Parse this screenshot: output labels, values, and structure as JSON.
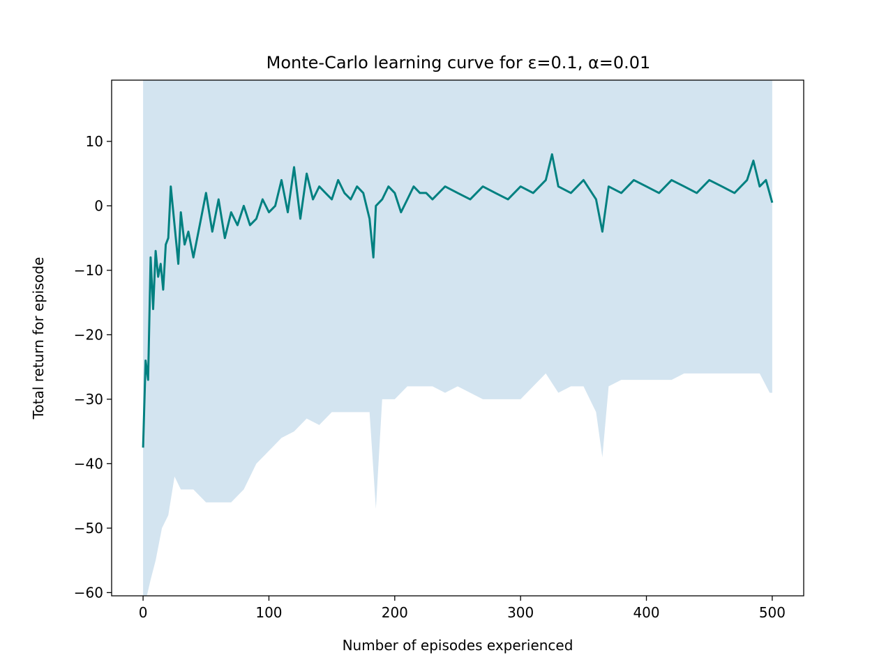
{
  "chart_data": {
    "type": "line",
    "title": "Monte-Carlo learning curve for ε=0.1, α=0.01",
    "xlabel": "Number of episodes experienced",
    "ylabel": "Total return for episode",
    "xlim": [
      -25,
      525
    ],
    "ylim": [
      -60.5,
      19.5
    ],
    "xticks": [
      0,
      100,
      200,
      300,
      400,
      500
    ],
    "yticks": [
      -60,
      -50,
      -40,
      -30,
      -20,
      -10,
      0,
      10
    ],
    "ytick_labels": [
      "−60",
      "−50",
      "−40",
      "−30",
      "−20",
      "−10",
      "0",
      "10"
    ],
    "grid": false,
    "legend": "none",
    "line_color": "#008080",
    "band_color": "#d3e4f0",
    "series": [
      {
        "type": "line",
        "x": [
          0,
          2,
          4,
          6,
          8,
          10,
          12,
          14,
          16,
          18,
          20,
          22,
          25,
          28,
          30,
          33,
          36,
          40,
          45,
          50,
          55,
          60,
          65,
          70,
          75,
          80,
          85,
          90,
          95,
          100,
          105,
          110,
          115,
          120,
          125,
          130,
          135,
          140,
          145,
          150,
          155,
          160,
          165,
          170,
          175,
          180,
          183,
          185,
          190,
          195,
          200,
          205,
          210,
          215,
          220,
          225,
          230,
          240,
          250,
          260,
          270,
          280,
          290,
          300,
          310,
          320,
          325,
          330,
          340,
          350,
          360,
          365,
          370,
          380,
          390,
          400,
          410,
          420,
          430,
          440,
          450,
          460,
          470,
          480,
          485,
          490,
          495,
          500
        ],
        "y": [
          -37.5,
          -24,
          -27,
          -8,
          -16,
          -7,
          -11,
          -9,
          -13,
          -6,
          -5,
          3,
          -3,
          -9,
          -1,
          -6,
          -4,
          -8,
          -3,
          2,
          -4,
          1,
          -5,
          -1,
          -3,
          0,
          -3,
          -2,
          1,
          -1,
          0,
          4,
          -1,
          6,
          -2,
          5,
          1,
          3,
          2,
          1,
          4,
          2,
          1,
          3,
          2,
          -2,
          -8,
          0,
          1,
          3,
          2,
          -1,
          1,
          3,
          2,
          2,
          1,
          3,
          2,
          1,
          3,
          2,
          1,
          3,
          2,
          4,
          8,
          3,
          2,
          4,
          1,
          -4,
          3,
          2,
          4,
          3,
          2,
          4,
          3,
          2,
          4,
          3,
          2,
          4,
          7,
          3,
          4,
          0.5
        ]
      }
    ],
    "band": {
      "x": [
        0,
        3,
        6,
        10,
        15,
        20,
        25,
        30,
        40,
        50,
        60,
        70,
        80,
        90,
        100,
        110,
        120,
        130,
        140,
        150,
        160,
        170,
        180,
        185,
        190,
        200,
        210,
        220,
        230,
        240,
        250,
        260,
        270,
        280,
        290,
        300,
        310,
        320,
        330,
        340,
        350,
        360,
        365,
        370,
        380,
        390,
        400,
        410,
        420,
        430,
        440,
        450,
        460,
        470,
        480,
        490,
        498,
        500
      ],
      "upper": [
        19.5,
        19.5,
        19.5,
        19.5,
        19.5,
        19.5,
        19.5,
        19.5,
        19.5,
        19.5,
        19.5,
        19.5,
        19.5,
        19.5,
        19.5,
        19.5,
        19.5,
        19.5,
        19.5,
        19.5,
        19.5,
        19.5,
        19.5,
        19.5,
        19.5,
        19.5,
        19.5,
        19.5,
        19.5,
        19.5,
        19.5,
        19.5,
        19.5,
        19.5,
        19.5,
        19.5,
        19.5,
        19.5,
        19.5,
        19.5,
        19.5,
        19.5,
        19.5,
        19.5,
        19.5,
        19.5,
        19.5,
        19.5,
        19.5,
        19.5,
        19.5,
        19.5,
        19.5,
        19.5,
        19.5,
        19.5,
        19.5,
        19.5
      ],
      "lower": [
        -60.5,
        -60.5,
        -58,
        -55,
        -50,
        -48,
        -42,
        -44,
        -44,
        -46,
        -46,
        -46,
        -44,
        -40,
        -38,
        -36,
        -35,
        -33,
        -34,
        -32,
        -32,
        -32,
        -32,
        -47,
        -30,
        -30,
        -28,
        -28,
        -28,
        -29,
        -28,
        -29,
        -30,
        -30,
        -30,
        -30,
        -28,
        -26,
        -29,
        -28,
        -28,
        -32,
        -39,
        -28,
        -27,
        -27,
        -27,
        -27,
        -27,
        -26,
        -26,
        -26,
        -26,
        -26,
        -26,
        -26,
        -29,
        -29
      ]
    }
  }
}
